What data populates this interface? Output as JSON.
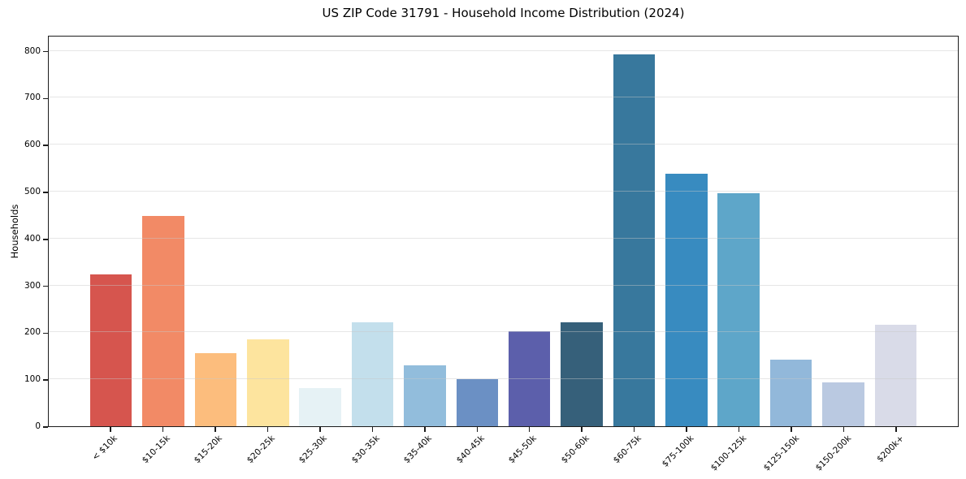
{
  "chart_data": {
    "type": "bar",
    "title": "US ZIP Code 31791 - Household Income Distribution (2024)",
    "xlabel": "",
    "ylabel": "Households",
    "categories": [
      "< $10k",
      "$10-15k",
      "$15-20k",
      "$20-25k",
      "$25-30k",
      "$30-35k",
      "$35-40k",
      "$40-45k",
      "$45-50k",
      "$50-60k",
      "$60-75k",
      "$75-100k",
      "$100-125k",
      "$125-150k",
      "$150-200k",
      "$200k+"
    ],
    "values": [
      323,
      448,
      156,
      185,
      82,
      221,
      129,
      101,
      203,
      221,
      793,
      538,
      496,
      142,
      93,
      216
    ],
    "bar_colors": [
      "#d6554e",
      "#f28a66",
      "#fcbd7d",
      "#fde49e",
      "#e6f2f5",
      "#c3dfec",
      "#92bddc",
      "#6b90c4",
      "#5c5fab",
      "#36607a",
      "#38789d",
      "#388bc0",
      "#5ea6c9",
      "#92b8da",
      "#bac9e1",
      "#d9dbe8"
    ],
    "ylim": [
      0,
      834
    ],
    "yticks": [
      0,
      100,
      200,
      300,
      400,
      500,
      600,
      700,
      800
    ],
    "grid": "horizontal-only",
    "gridline_color": "#e6e6e6",
    "x_tick_rotation_deg": 45,
    "legend_position": "none",
    "axis_color": "#000000"
  }
}
